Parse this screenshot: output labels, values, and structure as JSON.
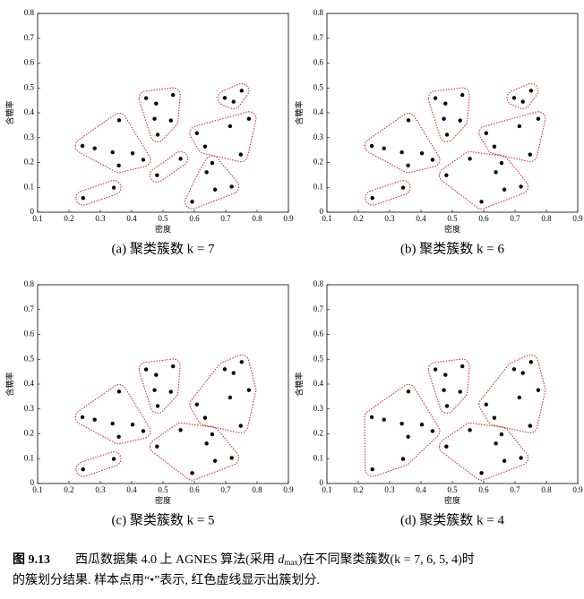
{
  "chart_data": [
    {
      "type": "scatter",
      "subtitle": "(a) 聚类簇数 k = 7",
      "x_label": "密度",
      "y_label": "含糖率",
      "xlim": [
        0.1,
        0.9
      ],
      "ylim": [
        0,
        0.8
      ],
      "xticks": [
        0.1,
        0.2,
        0.3,
        0.4,
        0.5,
        0.6,
        0.7,
        0.8,
        0.9
      ],
      "yticks": [
        0,
        0.1,
        0.2,
        0.3,
        0.4,
        0.5,
        0.6,
        0.7,
        0.8
      ],
      "point_color": "#000000",
      "cluster_color": "#d0312d",
      "series": [
        {
          "x": [
            0.243,
            0.282,
            0.339,
            0.36,
            0.359,
            0.403,
            0.437
          ],
          "values": [
            0.267,
            0.257,
            0.241,
            0.37,
            0.188,
            0.237,
            0.211
          ]
        },
        {
          "x": [
            0.245,
            0.343
          ],
          "values": [
            0.057,
            0.099
          ]
        },
        {
          "x": [
            0.478,
            0.446,
            0.483,
            0.525,
            0.532,
            0.473
          ],
          "values": [
            0.437,
            0.459,
            0.312,
            0.369,
            0.472,
            0.376
          ]
        },
        {
          "x": [
            0.697,
            0.751,
            0.725
          ],
          "values": [
            0.46,
            0.489,
            0.445
          ]
        },
        {
          "x": [
            0.774,
            0.634,
            0.608,
            0.748,
            0.714
          ],
          "values": [
            0.376,
            0.264,
            0.318,
            0.232,
            0.346
          ]
        },
        {
          "x": [
            0.481,
            0.556
          ],
          "values": [
            0.149,
            0.215
          ]
        },
        {
          "x": [
            0.666,
            0.639,
            0.657,
            0.593,
            0.719
          ],
          "values": [
            0.091,
            0.161,
            0.198,
            0.042,
            0.103
          ]
        }
      ]
    },
    {
      "type": "scatter",
      "subtitle": "(b) 聚类簇数 k = 6",
      "x_label": "密度",
      "y_label": "含糖率",
      "xlim": [
        0.1,
        0.9
      ],
      "ylim": [
        0,
        0.8
      ],
      "xticks": [
        0.1,
        0.2,
        0.3,
        0.4,
        0.5,
        0.6,
        0.7,
        0.8,
        0.9
      ],
      "yticks": [
        0,
        0.1,
        0.2,
        0.3,
        0.4,
        0.5,
        0.6,
        0.7,
        0.8
      ],
      "point_color": "#000000",
      "cluster_color": "#d0312d",
      "series": [
        {
          "x": [
            0.243,
            0.282,
            0.339,
            0.36,
            0.359,
            0.403,
            0.437
          ],
          "values": [
            0.267,
            0.257,
            0.241,
            0.37,
            0.188,
            0.237,
            0.211
          ]
        },
        {
          "x": [
            0.245,
            0.343
          ],
          "values": [
            0.057,
            0.099
          ]
        },
        {
          "x": [
            0.478,
            0.446,
            0.483,
            0.525,
            0.532,
            0.473
          ],
          "values": [
            0.437,
            0.459,
            0.312,
            0.369,
            0.472,
            0.376
          ]
        },
        {
          "x": [
            0.697,
            0.751,
            0.725
          ],
          "values": [
            0.46,
            0.489,
            0.445
          ]
        },
        {
          "x": [
            0.774,
            0.634,
            0.608,
            0.748,
            0.714
          ],
          "values": [
            0.376,
            0.264,
            0.318,
            0.232,
            0.346
          ]
        },
        {
          "x": [
            0.481,
            0.556,
            0.666,
            0.639,
            0.657,
            0.593,
            0.719
          ],
          "values": [
            0.149,
            0.215,
            0.091,
            0.161,
            0.198,
            0.042,
            0.103
          ]
        }
      ]
    },
    {
      "type": "scatter",
      "subtitle": "(c) 聚类簇数 k = 5",
      "x_label": "密度",
      "y_label": "含糖率",
      "xlim": [
        0.1,
        0.9
      ],
      "ylim": [
        0,
        0.8
      ],
      "xticks": [
        0.1,
        0.2,
        0.3,
        0.4,
        0.5,
        0.6,
        0.7,
        0.8,
        0.9
      ],
      "yticks": [
        0,
        0.1,
        0.2,
        0.3,
        0.4,
        0.5,
        0.6,
        0.7,
        0.8
      ],
      "point_color": "#000000",
      "cluster_color": "#d0312d",
      "series": [
        {
          "x": [
            0.243,
            0.282,
            0.339,
            0.36,
            0.359,
            0.403,
            0.437
          ],
          "values": [
            0.267,
            0.257,
            0.241,
            0.37,
            0.188,
            0.237,
            0.211
          ]
        },
        {
          "x": [
            0.245,
            0.343
          ],
          "values": [
            0.057,
            0.099
          ]
        },
        {
          "x": [
            0.478,
            0.446,
            0.483,
            0.525,
            0.532,
            0.473
          ],
          "values": [
            0.437,
            0.459,
            0.312,
            0.369,
            0.472,
            0.376
          ]
        },
        {
          "x": [
            0.697,
            0.751,
            0.725,
            0.774,
            0.634,
            0.608,
            0.748,
            0.714
          ],
          "values": [
            0.46,
            0.489,
            0.445,
            0.376,
            0.264,
            0.318,
            0.232,
            0.346
          ]
        },
        {
          "x": [
            0.481,
            0.556,
            0.666,
            0.639,
            0.657,
            0.593,
            0.719
          ],
          "values": [
            0.149,
            0.215,
            0.091,
            0.161,
            0.198,
            0.042,
            0.103
          ]
        }
      ]
    },
    {
      "type": "scatter",
      "subtitle": "(d) 聚类簇数 k = 4",
      "x_label": "密度",
      "y_label": "含糖率",
      "xlim": [
        0.1,
        0.9
      ],
      "ylim": [
        0,
        0.8
      ],
      "xticks": [
        0.1,
        0.2,
        0.3,
        0.4,
        0.5,
        0.6,
        0.7,
        0.8,
        0.9
      ],
      "yticks": [
        0,
        0.1,
        0.2,
        0.3,
        0.4,
        0.5,
        0.6,
        0.7,
        0.8
      ],
      "point_color": "#000000",
      "cluster_color": "#d0312d",
      "series": [
        {
          "x": [
            0.243,
            0.282,
            0.339,
            0.36,
            0.359,
            0.403,
            0.437,
            0.245,
            0.343
          ],
          "values": [
            0.267,
            0.257,
            0.241,
            0.37,
            0.188,
            0.237,
            0.211,
            0.057,
            0.099
          ]
        },
        {
          "x": [
            0.478,
            0.446,
            0.483,
            0.525,
            0.532,
            0.473
          ],
          "values": [
            0.437,
            0.459,
            0.312,
            0.369,
            0.472,
            0.376
          ]
        },
        {
          "x": [
            0.697,
            0.751,
            0.725,
            0.774,
            0.634,
            0.608,
            0.748,
            0.714
          ],
          "values": [
            0.46,
            0.489,
            0.445,
            0.376,
            0.264,
            0.318,
            0.232,
            0.346
          ]
        },
        {
          "x": [
            0.481,
            0.556,
            0.666,
            0.639,
            0.657,
            0.593,
            0.719
          ],
          "values": [
            0.149,
            0.215,
            0.091,
            0.161,
            0.198,
            0.042,
            0.103
          ]
        }
      ]
    }
  ],
  "caption": {
    "label": "图 9.13",
    "line1a": "西瓜数据集 4.0 上 AGNES 算法(采用 ",
    "d": "d",
    "sub": "max",
    "line1b": ")在不同聚类簇数(k = 7, 6, 5, 4)时",
    "line2": "的簇划分结果. 样本点用“•”表示, 红色虚线显示出簇划分."
  }
}
